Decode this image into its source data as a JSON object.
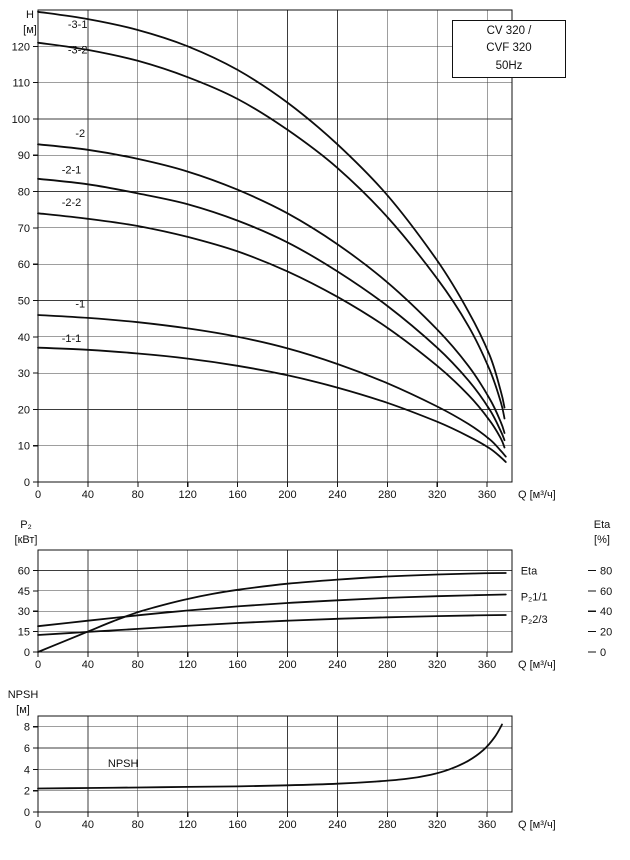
{
  "colors": {
    "background": "#ffffff",
    "curve": "#0d0d0d",
    "grid": "#3d3d3d",
    "text": "#111111"
  },
  "legend": {
    "lines": [
      "CV 320 /",
      "CVF 320",
      "50Hz"
    ]
  },
  "chart_data": [
    {
      "id": "head",
      "type": "line",
      "x_axis": {
        "label": "Q [м³/ч]",
        "min": 0,
        "max": 380,
        "ticks": [
          0,
          40,
          80,
          120,
          160,
          200,
          240,
          280,
          320,
          360
        ]
      },
      "y_axis": {
        "title": "H",
        "unit": "[м]",
        "min": 0,
        "max": 130,
        "ticks": [
          0,
          10,
          20,
          30,
          40,
          50,
          60,
          70,
          80,
          90,
          100,
          110,
          120
        ]
      },
      "series": [
        {
          "name": "-3-1",
          "label_at": [
            24,
            125
          ],
          "points": [
            [
              0,
              129.5
            ],
            [
              40,
              127.5
            ],
            [
              80,
              124.5
            ],
            [
              120,
              120
            ],
            [
              160,
              113.5
            ],
            [
              200,
              104.5
            ],
            [
              240,
              93
            ],
            [
              280,
              79
            ],
            [
              320,
              61
            ],
            [
              345,
              47
            ],
            [
              362,
              35
            ],
            [
              371,
              25
            ],
            [
              374,
              20.5
            ]
          ]
        },
        {
          "name": "-3-2",
          "label_at": [
            24,
            118
          ],
          "points": [
            [
              0,
              121
            ],
            [
              40,
              119
            ],
            [
              80,
              116
            ],
            [
              120,
              111.5
            ],
            [
              160,
              105.5
            ],
            [
              200,
              97
            ],
            [
              240,
              86.5
            ],
            [
              280,
              73
            ],
            [
              320,
              56
            ],
            [
              345,
              43
            ],
            [
              362,
              31
            ],
            [
              371,
              22
            ],
            [
              374,
              17.5
            ]
          ]
        },
        {
          "name": "-2",
          "label_at": [
            30,
            95
          ],
          "points": [
            [
              0,
              93
            ],
            [
              40,
              91.5
            ],
            [
              80,
              89
            ],
            [
              120,
              85.5
            ],
            [
              160,
              80.5
            ],
            [
              200,
              74
            ],
            [
              240,
              65.5
            ],
            [
              280,
              55
            ],
            [
              320,
              42
            ],
            [
              345,
              32
            ],
            [
              362,
              23
            ],
            [
              371,
              16.5
            ],
            [
              374,
              13.5
            ]
          ]
        },
        {
          "name": "-2-1",
          "label_at": [
            19,
            85
          ],
          "points": [
            [
              0,
              83.5
            ],
            [
              40,
              82
            ],
            [
              80,
              79.5
            ],
            [
              120,
              76.5
            ],
            [
              160,
              72
            ],
            [
              200,
              66
            ],
            [
              240,
              58
            ],
            [
              280,
              48.5
            ],
            [
              320,
              37
            ],
            [
              345,
              28
            ],
            [
              362,
              20
            ],
            [
              371,
              14
            ],
            [
              374,
              11.5
            ]
          ]
        },
        {
          "name": "-2-2",
          "label_at": [
            19,
            76
          ],
          "points": [
            [
              0,
              74
            ],
            [
              40,
              72.5
            ],
            [
              80,
              70.5
            ],
            [
              120,
              67.5
            ],
            [
              160,
              63.5
            ],
            [
              200,
              58
            ],
            [
              240,
              51
            ],
            [
              280,
              42.5
            ],
            [
              320,
              32
            ],
            [
              345,
              24
            ],
            [
              362,
              17
            ],
            [
              371,
              12
            ],
            [
              374,
              9.5
            ]
          ]
        },
        {
          "name": "-1",
          "label_at": [
            30,
            48
          ],
          "points": [
            [
              0,
              46
            ],
            [
              40,
              45.2
            ],
            [
              80,
              44
            ],
            [
              120,
              42.3
            ],
            [
              160,
              40
            ],
            [
              200,
              36.8
            ],
            [
              240,
              32.5
            ],
            [
              280,
              27.2
            ],
            [
              320,
              20.8
            ],
            [
              345,
              16
            ],
            [
              362,
              11.8
            ],
            [
              371,
              8.6
            ],
            [
              375,
              7
            ]
          ]
        },
        {
          "name": "-1-1",
          "label_at": [
            19,
            38.5
          ],
          "points": [
            [
              0,
              37
            ],
            [
              40,
              36.4
            ],
            [
              80,
              35.4
            ],
            [
              120,
              34
            ],
            [
              160,
              32
            ],
            [
              200,
              29.4
            ],
            [
              240,
              26
            ],
            [
              280,
              21.8
            ],
            [
              320,
              16.6
            ],
            [
              345,
              12.6
            ],
            [
              362,
              9.3
            ],
            [
              371,
              6.8
            ],
            [
              375,
              5.5
            ]
          ]
        }
      ]
    },
    {
      "id": "power",
      "type": "line",
      "x_axis": {
        "label": "Q [м³/ч]",
        "min": 0,
        "max": 380,
        "ticks": [
          0,
          40,
          80,
          120,
          160,
          200,
          240,
          280,
          320,
          360
        ]
      },
      "y_axis": {
        "title": "P₂",
        "unit": "[кВт]",
        "min": 0,
        "max": 75,
        "ticks": [
          0,
          15,
          30,
          45,
          60
        ]
      },
      "y_axis_right": {
        "title": "Eta",
        "unit": "[%]",
        "min": 0,
        "max": 100,
        "ticks": [
          0,
          20,
          40,
          60,
          80
        ]
      },
      "series": [
        {
          "name": "Eta",
          "axis": "right",
          "label_at": [
            387,
            76
          ],
          "points": [
            [
              0,
              0
            ],
            [
              20,
              10
            ],
            [
              40,
              20
            ],
            [
              60,
              30
            ],
            [
              80,
              39
            ],
            [
              100,
              46
            ],
            [
              120,
              52
            ],
            [
              140,
              57
            ],
            [
              160,
              61
            ],
            [
              200,
              67
            ],
            [
              240,
              71
            ],
            [
              280,
              74
            ],
            [
              320,
              76
            ],
            [
              350,
              77
            ],
            [
              375,
              77.5
            ]
          ]
        },
        {
          "name": "P₂1/1",
          "axis": "left",
          "label_at": [
            387,
            38
          ],
          "points": [
            [
              0,
              19
            ],
            [
              40,
              23
            ],
            [
              80,
              27
            ],
            [
              120,
              30.5
            ],
            [
              160,
              33.5
            ],
            [
              200,
              36
            ],
            [
              240,
              38
            ],
            [
              280,
              39.8
            ],
            [
              320,
              41
            ],
            [
              350,
              41.8
            ],
            [
              375,
              42.3
            ]
          ]
        },
        {
          "name": "P₂2/3",
          "axis": "left",
          "label_at": [
            387,
            21.5
          ],
          "points": [
            [
              0,
              12.5
            ],
            [
              40,
              14.8
            ],
            [
              80,
              17
            ],
            [
              120,
              19.3
            ],
            [
              160,
              21.3
            ],
            [
              200,
              23
            ],
            [
              240,
              24.4
            ],
            [
              280,
              25.5
            ],
            [
              320,
              26.4
            ],
            [
              350,
              26.9
            ],
            [
              375,
              27.2
            ]
          ]
        }
      ]
    },
    {
      "id": "npsh",
      "type": "line",
      "x_axis": {
        "label": "Q [м³/ч]",
        "min": 0,
        "max": 380,
        "ticks": [
          0,
          40,
          80,
          120,
          160,
          200,
          240,
          280,
          320,
          360
        ]
      },
      "y_axis": {
        "title": "NPSH",
        "unit": "[м]",
        "min": 0,
        "max": 9,
        "ticks": [
          0,
          2,
          4,
          6,
          8
        ]
      },
      "series": [
        {
          "name": "NPSH",
          "label_at": [
            56,
            4.2
          ],
          "points": [
            [
              0,
              2.2
            ],
            [
              40,
              2.25
            ],
            [
              80,
              2.3
            ],
            [
              120,
              2.35
            ],
            [
              160,
              2.4
            ],
            [
              200,
              2.5
            ],
            [
              240,
              2.65
            ],
            [
              270,
              2.85
            ],
            [
              295,
              3.1
            ],
            [
              315,
              3.5
            ],
            [
              330,
              4.0
            ],
            [
              345,
              4.8
            ],
            [
              357,
              5.8
            ],
            [
              366,
              7.0
            ],
            [
              372,
              8.2
            ]
          ]
        }
      ]
    }
  ]
}
